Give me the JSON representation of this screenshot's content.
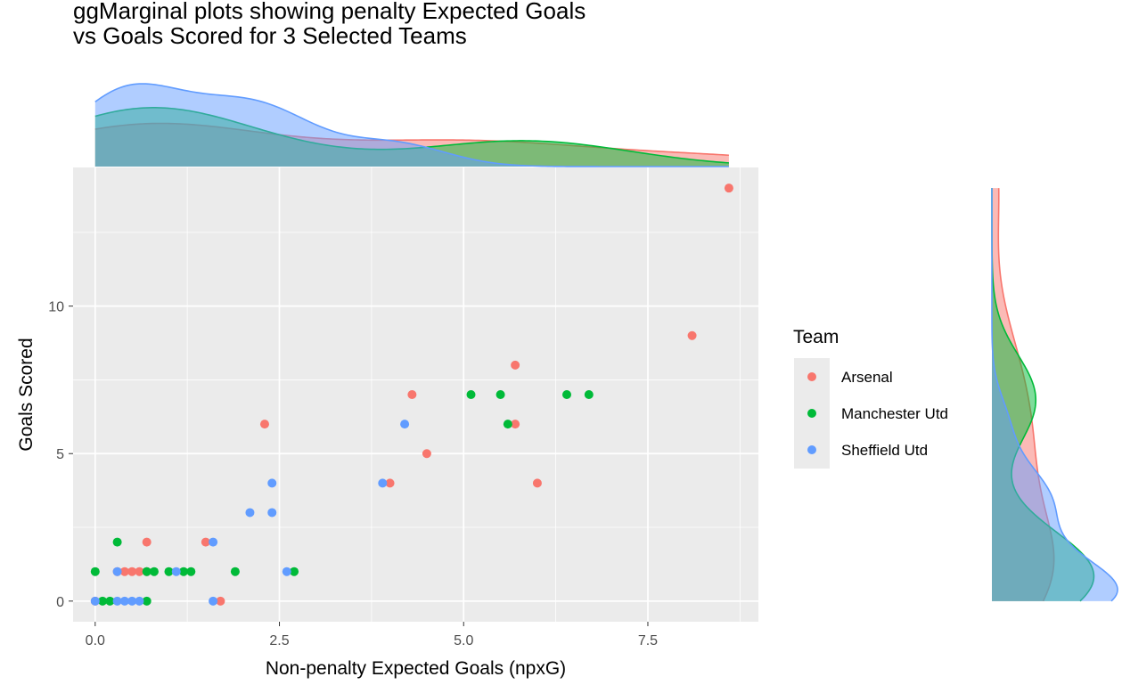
{
  "chart_data": {
    "type": "scatter",
    "title_lines": [
      "ggMarginal plots showing penalty Expected Goals",
      "vs Goals Scored for 3 Selected Teams"
    ],
    "xlabel": "Non-penalty Expected Goals (npxG)",
    "ylabel": "Goals Scored",
    "xlim": [
      -0.3,
      9.0
    ],
    "ylim": [
      -0.7,
      14.7
    ],
    "x_ticks": [
      0.0,
      2.5,
      5.0,
      7.5
    ],
    "x_tick_labels": [
      "0.0",
      "2.5",
      "5.0",
      "7.5"
    ],
    "y_ticks": [
      0,
      5,
      10
    ],
    "y_tick_labels": [
      "0",
      "5",
      "10"
    ],
    "grid": true,
    "legend": {
      "title": "Team",
      "position": "right"
    },
    "marginal": "density",
    "series": [
      {
        "name": "Arsenal",
        "color": "#F8766D",
        "points": [
          [
            8.6,
            14
          ],
          [
            8.1,
            9
          ],
          [
            5.7,
            8
          ],
          [
            4.3,
            7
          ],
          [
            2.3,
            6
          ],
          [
            5.7,
            6
          ],
          [
            4.5,
            5
          ],
          [
            4.0,
            4
          ],
          [
            6.0,
            4
          ],
          [
            1.5,
            2
          ],
          [
            0.7,
            2
          ],
          [
            0.3,
            1
          ],
          [
            0.4,
            1
          ],
          [
            0.5,
            1
          ],
          [
            0.6,
            1
          ],
          [
            0.7,
            1
          ],
          [
            0.0,
            0
          ],
          [
            1.7,
            0
          ]
        ]
      },
      {
        "name": "Manchester Utd",
        "color": "#00BA38",
        "points": [
          [
            5.1,
            7
          ],
          [
            5.5,
            7
          ],
          [
            6.4,
            7
          ],
          [
            6.7,
            7
          ],
          [
            5.6,
            6
          ],
          [
            0.3,
            2
          ],
          [
            0.0,
            1
          ],
          [
            0.7,
            1
          ],
          [
            0.8,
            1
          ],
          [
            1.0,
            1
          ],
          [
            1.2,
            1
          ],
          [
            1.3,
            1
          ],
          [
            1.9,
            1
          ],
          [
            2.7,
            1
          ],
          [
            0.1,
            0
          ],
          [
            0.2,
            0
          ],
          [
            0.7,
            0
          ]
        ]
      },
      {
        "name": "Sheffield Utd",
        "color": "#619CFF",
        "points": [
          [
            4.2,
            6
          ],
          [
            2.4,
            4
          ],
          [
            3.9,
            4
          ],
          [
            2.1,
            3
          ],
          [
            2.4,
            3
          ],
          [
            1.6,
            2
          ],
          [
            0.3,
            1
          ],
          [
            1.1,
            1
          ],
          [
            2.6,
            1
          ],
          [
            0.0,
            0
          ],
          [
            0.3,
            0
          ],
          [
            0.4,
            0
          ],
          [
            0.5,
            0
          ],
          [
            0.6,
            0
          ],
          [
            1.6,
            0
          ]
        ]
      }
    ]
  }
}
